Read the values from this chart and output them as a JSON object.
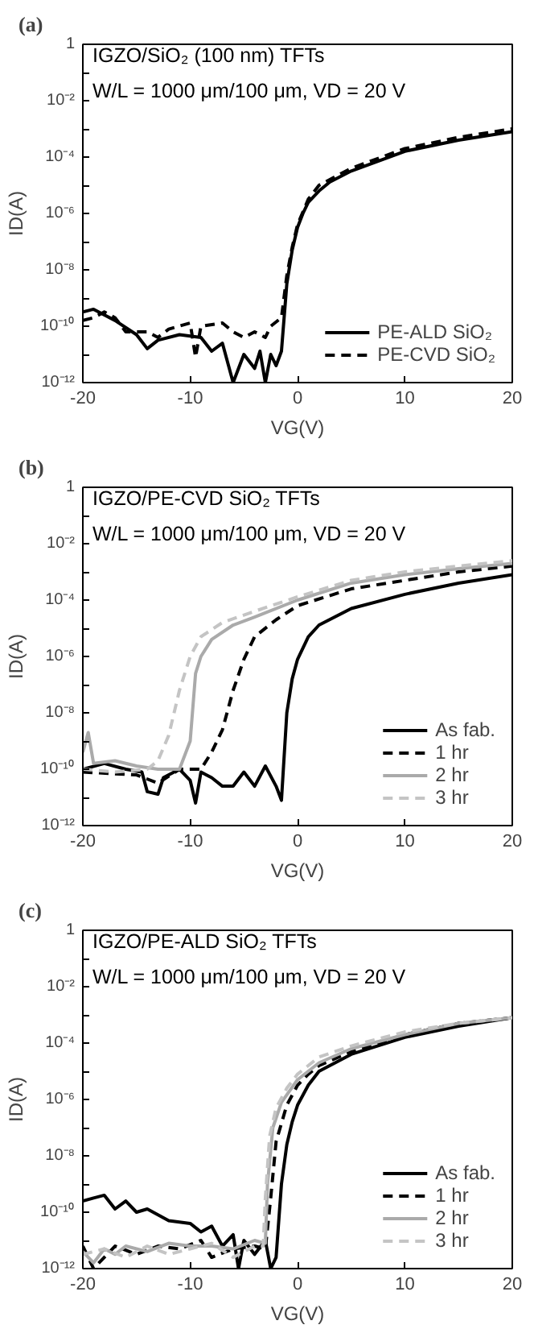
{
  "chart_data": [
    {
      "type": "line",
      "title": "(a)",
      "annotations": [
        "IGZO/SiO₂ (100 nm) TFTs",
        "W/L = 1000 μm/100 μm,  VD = 20 V"
      ],
      "xlabel": "VG(V)",
      "ylabel": "ID(A)",
      "log": "y",
      "grid": false,
      "legend": "bottom right",
      "xlim": [
        -20,
        20
      ],
      "xticks": [
        -20,
        -10,
        0,
        10,
        20
      ],
      "ylim": [
        1e-12,
        1
      ],
      "yticks": [
        {
          "value": 1e-12,
          "label": "10⁻¹²"
        },
        {
          "value": 1e-11,
          "label": null
        },
        {
          "value": 1e-10,
          "label": "10⁻¹⁰"
        },
        {
          "value": 1e-09,
          "label": null
        },
        {
          "value": 1e-08,
          "label": "10⁻⁸"
        },
        {
          "value": 1e-07,
          "label": null
        },
        {
          "value": 1e-06,
          "label": "10⁻⁶"
        },
        {
          "value": 1e-05,
          "label": null
        },
        {
          "value": 0.0001,
          "label": "10⁻⁴"
        },
        {
          "value": 0.001,
          "label": null
        },
        {
          "value": 0.01,
          "label": "10⁻²"
        },
        {
          "value": 0.1,
          "label": null
        },
        {
          "value": 1,
          "label": "1"
        }
      ],
      "series": [
        {
          "name": "PE-ALD SiO₂",
          "color": "#000000",
          "line_style": "solid",
          "x": [
            -20,
            -19,
            -18,
            -17,
            -15,
            -14,
            -13,
            -11,
            -9,
            -8,
            -7,
            -6,
            -5,
            -4,
            -3.5,
            -3,
            -2.5,
            -2,
            -1.5,
            -1,
            -0.5,
            0,
            0.5,
            1,
            2,
            3,
            5,
            10,
            15,
            20
          ],
          "values": [
            3.2e-10,
            4e-10,
            2.5e-10,
            1.6e-10,
            5e-11,
            1.6e-11,
            3.2e-11,
            5e-11,
            4e-11,
            1.3e-11,
            2.5e-11,
            1e-12,
            1e-11,
            3.2e-12,
            1.3e-11,
            1e-12,
            1e-11,
            4e-12,
            1.3e-11,
            3.2e-09,
            5e-08,
            3.2e-07,
            1e-06,
            2.5e-06,
            6.3e-06,
            1.3e-05,
            3.2e-05,
            0.00016,
            0.0004,
            0.00079
          ]
        },
        {
          "name": "PE-CVD SiO₂",
          "color": "#000000",
          "line_style": "dashed",
          "x": [
            -20,
            -19,
            -18,
            -17,
            -16,
            -14,
            -13,
            -12,
            -10,
            -9.5,
            -9,
            -7,
            -6,
            -5,
            -4,
            -3,
            -2.5,
            -1.5,
            -1,
            -0.5,
            0,
            1,
            2,
            5,
            10,
            15,
            20
          ],
          "values": [
            1.6e-10,
            2e-10,
            3.2e-10,
            2e-10,
            6.3e-11,
            6.3e-11,
            4e-11,
            7.9e-11,
            1.3e-10,
            7.9e-12,
            1e-10,
            1.3e-10,
            6.3e-11,
            4e-11,
            6.3e-11,
            4e-11,
            1e-10,
            2e-10,
            6.3e-09,
            6.3e-08,
            4e-07,
            3.2e-06,
            1e-05,
            4e-05,
            0.0002,
            0.0005,
            0.001
          ]
        }
      ]
    },
    {
      "type": "line",
      "title": "(b)",
      "annotations": [
        "IGZO/PE-CVD SiO₂ TFTs",
        "W/L = 1000 μm/100 μm,  VD = 20 V"
      ],
      "xlabel": "VG(V)",
      "ylabel": "ID(A)",
      "log": "y",
      "grid": false,
      "legend": "bottom right",
      "xlim": [
        -20,
        20
      ],
      "xticks": [
        -20,
        -10,
        0,
        10,
        20
      ],
      "ylim": [
        1e-12,
        1
      ],
      "yticks": [
        {
          "value": 1e-12,
          "label": "10⁻¹²"
        },
        {
          "value": 1e-11,
          "label": null
        },
        {
          "value": 1e-10,
          "label": "10⁻¹⁰"
        },
        {
          "value": 1e-09,
          "label": null
        },
        {
          "value": 1e-08,
          "label": "10⁻⁸"
        },
        {
          "value": 1e-07,
          "label": null
        },
        {
          "value": 1e-06,
          "label": "10⁻⁶"
        },
        {
          "value": 1e-05,
          "label": null
        },
        {
          "value": 0.0001,
          "label": "10⁻⁴"
        },
        {
          "value": 0.001,
          "label": null
        },
        {
          "value": 0.01,
          "label": "10⁻²"
        },
        {
          "value": 0.1,
          "label": null
        },
        {
          "value": 1,
          "label": "1"
        }
      ],
      "series": [
        {
          "name": "As fab.",
          "color": "#000000",
          "line_style": "solid",
          "x": [
            -20,
            -18,
            -16,
            -14.5,
            -14,
            -13,
            -12.5,
            -11,
            -10,
            -9.5,
            -9,
            -8,
            -7,
            -6,
            -5,
            -4,
            -3,
            -2,
            -1.5,
            -1,
            -0.5,
            0,
            1,
            2,
            5,
            10,
            15,
            20
          ],
          "values": [
            1e-10,
            1.6e-10,
            1e-10,
            7.9e-11,
            1.6e-11,
            1.3e-11,
            5e-11,
            1e-10,
            4e-11,
            6.3e-12,
            7.9e-11,
            5e-11,
            2.5e-11,
            2.5e-11,
            7.9e-11,
            2.5e-11,
            1.3e-10,
            2.5e-11,
            7.9e-12,
            1e-08,
            1.6e-07,
            7.9e-07,
            5e-06,
            1.3e-05,
            5e-05,
            0.00016,
            0.0004,
            0.00079
          ]
        },
        {
          "name": "1 hr",
          "color": "#000000",
          "line_style": "dashed",
          "x": [
            -20,
            -15,
            -13,
            -11,
            -9,
            -8,
            -7,
            -6,
            -5,
            -4,
            -2,
            0,
            5,
            10,
            15,
            20
          ],
          "values": [
            7.9e-11,
            6.3e-11,
            3.2e-11,
            1e-10,
            1e-10,
            4e-10,
            2.5e-09,
            6.3e-08,
            7.9e-07,
            5e-06,
            2e-05,
            6.3e-05,
            0.00025,
            0.0005,
            0.001,
            0.0016
          ]
        },
        {
          "name": "2 hr",
          "color": "#aaaaaa",
          "line_style": "solid",
          "x": [
            -20,
            -19.5,
            -19,
            -17,
            -15,
            -13,
            -11,
            -10,
            -9.5,
            -9,
            -8,
            -6,
            -4,
            0,
            5,
            10,
            15,
            20
          ],
          "values": [
            4e-10,
            2e-09,
            1.6e-10,
            2e-10,
            1.3e-10,
            1e-10,
            1e-10,
            1e-09,
            2.5e-07,
            1e-06,
            4e-06,
            1.3e-05,
            2.5e-05,
            0.0001,
            0.0004,
            0.00079,
            0.0013,
            0.002
          ]
        },
        {
          "name": "3 hr",
          "color": "#c4c4c4",
          "line_style": "dashed",
          "x": [
            -20,
            -17,
            -14,
            -13,
            -12,
            -11.5,
            -11,
            -10,
            -9,
            -7,
            -4,
            0,
            5,
            10,
            15,
            20
          ],
          "values": [
            1e-10,
            7.9e-11,
            1e-10,
            2e-10,
            1.6e-09,
            1e-08,
            6.3e-08,
            1e-06,
            5e-06,
            1.6e-05,
            4e-05,
            0.00013,
            0.0005,
            0.001,
            0.0016,
            0.0025
          ]
        }
      ]
    },
    {
      "type": "line",
      "title": "(c)",
      "annotations": [
        "IGZO/PE-ALD SiO₂ TFTs",
        "W/L = 1000 μm/100 μm,  VD = 20 V"
      ],
      "xlabel": "VG(V)",
      "ylabel": "ID(A)",
      "log": "y",
      "grid": false,
      "legend": "bottom right",
      "xlim": [
        -20,
        20
      ],
      "xticks": [
        -20,
        -10,
        0,
        10,
        20
      ],
      "ylim": [
        1e-12,
        1
      ],
      "yticks": [
        {
          "value": 1e-12,
          "label": "10⁻¹²"
        },
        {
          "value": 1e-11,
          "label": null
        },
        {
          "value": 1e-10,
          "label": "10⁻¹⁰"
        },
        {
          "value": 1e-09,
          "label": null
        },
        {
          "value": 1e-08,
          "label": "10⁻⁸"
        },
        {
          "value": 1e-07,
          "label": null
        },
        {
          "value": 1e-06,
          "label": "10⁻⁶"
        },
        {
          "value": 1e-05,
          "label": null
        },
        {
          "value": 0.0001,
          "label": "10⁻⁴"
        },
        {
          "value": 0.001,
          "label": null
        },
        {
          "value": 0.01,
          "label": "10⁻²"
        },
        {
          "value": 0.1,
          "label": null
        },
        {
          "value": 1,
          "label": "1"
        }
      ],
      "series": [
        {
          "name": "As fab.",
          "color": "#000000",
          "line_style": "solid",
          "x": [
            -20,
            -19,
            -18,
            -17,
            -16,
            -15,
            -14,
            -12,
            -10,
            -9,
            -8,
            -7,
            -6,
            -5.5,
            -5,
            -4,
            -3,
            -2.5,
            -2,
            -1.5,
            -1,
            -0.5,
            0,
            1,
            2,
            5,
            10,
            15,
            20
          ],
          "values": [
            2.5e-10,
            3.2e-10,
            4e-10,
            1.3e-10,
            2.5e-10,
            1e-10,
            1.3e-10,
            5e-11,
            4e-11,
            2e-11,
            3.2e-11,
            6.3e-12,
            1.6e-11,
            1e-12,
            1e-11,
            3.2e-12,
            1e-11,
            1e-12,
            2.5e-12,
            1e-09,
            2.5e-08,
            1.6e-07,
            6.3e-07,
            3.2e-06,
            1e-05,
            4e-05,
            0.00016,
            0.0004,
            0.00079
          ]
        },
        {
          "name": "1 hr",
          "color": "#000000",
          "line_style": "dashed",
          "x": [
            -20,
            -19,
            -17,
            -15,
            -13,
            -11,
            -9,
            -8,
            -6,
            -4,
            -3,
            -2.5,
            -2,
            -1,
            0,
            1,
            2,
            5,
            10,
            15,
            20
          ],
          "values": [
            6.3e-12,
            1e-12,
            6.3e-12,
            3.2e-12,
            6.3e-12,
            5e-12,
            1e-11,
            2.5e-12,
            5e-12,
            6.3e-12,
            5e-12,
            3.2e-10,
            3.2e-08,
            6.3e-07,
            3.2e-06,
            7.9e-06,
            1.6e-05,
            5e-05,
            0.0002,
            0.0005,
            0.00079
          ]
        },
        {
          "name": "2 hr",
          "color": "#aaaaaa",
          "line_style": "solid",
          "x": [
            -20,
            -19,
            -18,
            -17,
            -16,
            -14,
            -12,
            -10,
            -8,
            -6,
            -4,
            -3,
            -2.8,
            -2.3,
            -1.5,
            0,
            2,
            5,
            10,
            15,
            20
          ],
          "values": [
            4e-12,
            1.6e-12,
            5e-12,
            3.2e-12,
            6.3e-12,
            4e-12,
            7.9e-12,
            6.3e-12,
            6.3e-12,
            5e-12,
            1e-11,
            7.9e-12,
            1e-09,
            1e-07,
            7.9e-07,
            5e-06,
            2e-05,
            6.3e-05,
            0.0002,
            0.0005,
            0.00079
          ]
        },
        {
          "name": "3 hr",
          "color": "#c4c4c4",
          "line_style": "dashed",
          "x": [
            -20,
            -18,
            -16,
            -14,
            -12,
            -10,
            -8,
            -6,
            -4,
            -3.2,
            -3,
            -2.6,
            -2,
            -1,
            0,
            2,
            5,
            10,
            15,
            20
          ],
          "values": [
            3.2e-12,
            5e-12,
            2.5e-12,
            6.3e-12,
            3.2e-12,
            5e-12,
            7.9e-12,
            2.5e-12,
            6.3e-12,
            6.3e-12,
            3.2e-10,
            5e-08,
            5e-07,
            2.5e-06,
            7.9e-06,
            3.2e-05,
            7.9e-05,
            0.00025,
            0.0005,
            0.00079
          ]
        }
      ]
    }
  ]
}
